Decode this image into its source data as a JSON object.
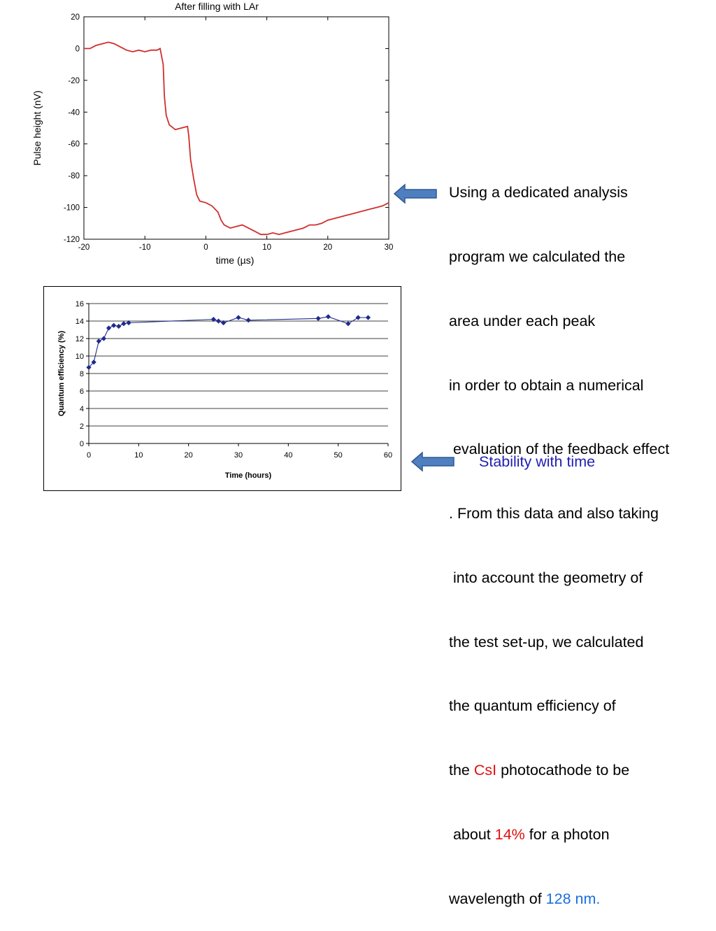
{
  "colors": {
    "pulse_line": "#cf2f2f",
    "qe_line": "#1f2a8c",
    "highlight_red": "#e01010",
    "highlight_blue": "#1a6fe0",
    "caption_blue": "#1f1fb4",
    "arrow_fill": "#4f7fbf",
    "arrow_stroke": "#2f5a94"
  },
  "icons": [
    "left-arrow-icon",
    "left-arrow-icon"
  ],
  "description": {
    "lines": [
      [
        "Using a dedicated analysis"
      ],
      [
        "program we calculated the"
      ],
      [
        "area under each peak"
      ],
      [
        "in order to obtain a numerical"
      ],
      [
        " evaluation of the feedback effect"
      ],
      [
        ". From this data and also taking"
      ],
      [
        " into account the geometry of"
      ],
      [
        "the test set-up, we calculated"
      ],
      [
        "the quantum efficiency of"
      ],
      [
        "the ",
        "CsI",
        " photocathode to be"
      ],
      [
        " about ",
        "14%",
        " for a photon"
      ],
      [
        "wavelength of ",
        "128 nm."
      ]
    ],
    "line10_highlight": "CsI",
    "line11_highlight": "14%",
    "line12_highlight": "128 nm."
  },
  "stability_caption": "Stability with time",
  "chart_data": [
    {
      "type": "line",
      "title": "After filling with LAr",
      "xlabel": "time (µs)",
      "ylabel": "Pulse height (nV)",
      "xlim": [
        -20,
        30
      ],
      "ylim": [
        -120,
        20
      ],
      "xticks": [
        "-20",
        "-10",
        "0",
        "10",
        "20",
        "30"
      ],
      "yticks": [
        "20",
        "0",
        "-20",
        "-40",
        "-60",
        "-80",
        "-100",
        "-120"
      ],
      "grid": false,
      "series": [
        {
          "points": [
            [
              -20,
              0
            ],
            [
              -19,
              0
            ],
            [
              -18,
              2
            ],
            [
              -17,
              3
            ],
            [
              -16,
              4
            ],
            [
              -15,
              3
            ],
            [
              -14,
              1
            ],
            [
              -13,
              -1
            ],
            [
              -12,
              -2
            ],
            [
              -11,
              -1
            ],
            [
              -10,
              -2
            ],
            [
              -9,
              -1
            ],
            [
              -8,
              -1
            ],
            [
              -7.5,
              0
            ],
            [
              -7,
              -10
            ],
            [
              -6.8,
              -30
            ],
            [
              -6.5,
              -42
            ],
            [
              -6,
              -48
            ],
            [
              -5,
              -51
            ],
            [
              -4,
              -50
            ],
            [
              -3,
              -49
            ],
            [
              -2.8,
              -55
            ],
            [
              -2.5,
              -70
            ],
            [
              -2,
              -82
            ],
            [
              -1.5,
              -92
            ],
            [
              -1,
              -96
            ],
            [
              0,
              -97
            ],
            [
              1,
              -99
            ],
            [
              2,
              -103
            ],
            [
              2.5,
              -108
            ],
            [
              3,
              -111
            ],
            [
              4,
              -113
            ],
            [
              5,
              -112
            ],
            [
              6,
              -111
            ],
            [
              7,
              -113
            ],
            [
              8,
              -115
            ],
            [
              9,
              -117
            ],
            [
              10,
              -117
            ],
            [
              11,
              -116
            ],
            [
              12,
              -117
            ],
            [
              13,
              -116
            ],
            [
              14,
              -115
            ],
            [
              15,
              -114
            ],
            [
              16,
              -113
            ],
            [
              17,
              -111
            ],
            [
              18,
              -111
            ],
            [
              19,
              -110
            ],
            [
              20,
              -108
            ],
            [
              21,
              -107
            ],
            [
              22,
              -106
            ],
            [
              23,
              -105
            ],
            [
              24,
              -104
            ],
            [
              25,
              -103
            ],
            [
              26,
              -102
            ],
            [
              27,
              -101
            ],
            [
              28,
              -100
            ],
            [
              29,
              -99
            ],
            [
              30,
              -97
            ]
          ]
        }
      ]
    },
    {
      "type": "line",
      "xlabel": "Time (hours)",
      "ylabel": "Quantum efficiency (%)",
      "xlim": [
        0,
        60
      ],
      "ylim": [
        0,
        16
      ],
      "xticks": [
        "0",
        "10",
        "20",
        "30",
        "40",
        "50",
        "60"
      ],
      "yticks": [
        "16",
        "14",
        "12",
        "10",
        "8",
        "6",
        "4",
        "2",
        "0"
      ],
      "grid": true,
      "series": [
        {
          "marker": "diamond",
          "x": [
            0,
            1,
            2,
            3,
            4,
            5,
            6,
            7,
            8,
            25,
            26,
            27,
            30,
            32,
            46,
            48,
            52,
            54,
            56
          ],
          "y": [
            8.7,
            9.3,
            11.7,
            12.0,
            13.2,
            13.5,
            13.4,
            13.7,
            13.8,
            14.2,
            14.0,
            13.8,
            14.4,
            14.1,
            14.3,
            14.5,
            13.7,
            14.4,
            14.4
          ]
        }
      ]
    }
  ]
}
